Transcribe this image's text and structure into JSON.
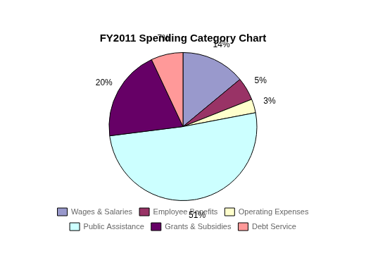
{
  "chart_data": {
    "type": "pie",
    "title": "FY2011 Spending Category Chart",
    "categories": [
      "Wages & Salaries",
      "Employee Benefits",
      "Operating Expenses",
      "Public Assistance",
      "Grants & Subsidies",
      "Debt Service"
    ],
    "values": [
      14,
      5,
      3,
      51,
      20,
      7
    ],
    "value_labels": [
      "14%",
      "5%",
      "3%",
      "51%",
      "20%",
      "7%"
    ],
    "data_labels": true,
    "colors": [
      "#9999cc",
      "#993366",
      "#ffffcc",
      "#ccffff",
      "#660066",
      "#ff9999"
    ],
    "legend": "bottom"
  }
}
